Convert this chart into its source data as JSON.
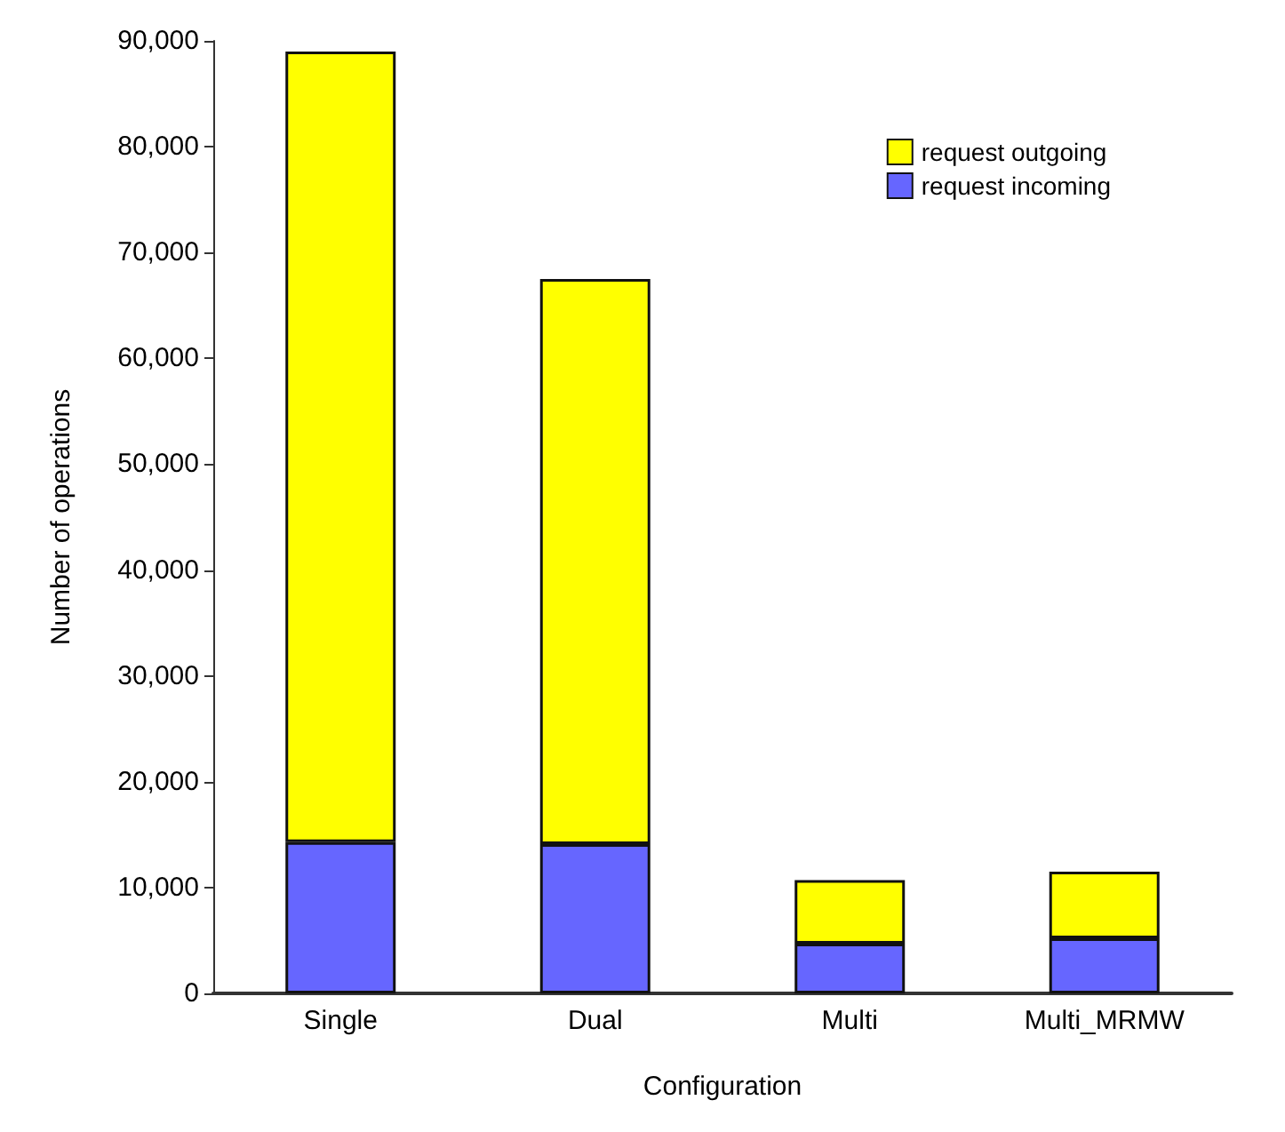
{
  "chart_data": {
    "type": "bar",
    "stacked": true,
    "xlabel": "Configuration",
    "ylabel": "Number of operations",
    "categories": [
      "Single",
      "Dual",
      "Multi",
      "Multi_MRMW"
    ],
    "series": [
      {
        "name": "request incoming",
        "color": "#6666ff",
        "values": [
          14300,
          14100,
          4700,
          5200
        ]
      },
      {
        "name": "request outgoing",
        "color": "#ffff00",
        "values": [
          74700,
          53400,
          6000,
          6300
        ]
      }
    ],
    "ylim": [
      0,
      90000
    ],
    "yticks": [
      0,
      {
        "value": 10000,
        "label": "10,000"
      },
      {
        "value": 20000,
        "label": "20,000"
      },
      {
        "value": 30000,
        "label": "30,000"
      },
      {
        "value": 40000,
        "label": "40,000"
      },
      {
        "value": 50000,
        "label": "50,000"
      },
      {
        "value": 60000,
        "label": "60,000"
      },
      {
        "value": 70000,
        "label": "70,000"
      },
      {
        "value": 80000,
        "label": "80,000"
      },
      {
        "value": 90000,
        "label": "90,000"
      }
    ],
    "grid": false,
    "legend": "top right"
  }
}
